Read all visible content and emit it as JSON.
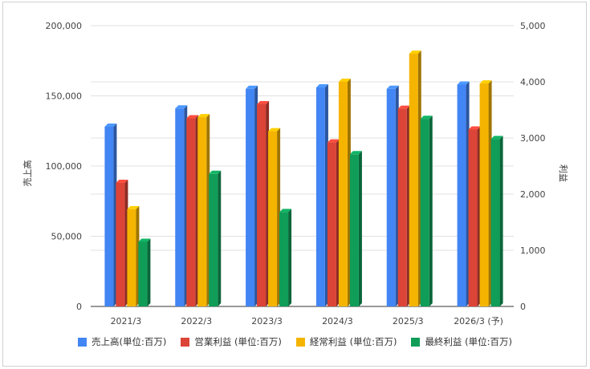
{
  "chart_data": {
    "type": "bar",
    "categories": [
      "2021/3",
      "2022/3",
      "2023/3",
      "2024/3",
      "2025/3",
      "2026/3 (予)"
    ],
    "series": [
      {
        "name": "売上高(単位:百万)",
        "axis": "left",
        "color": "#4285f4",
        "values": [
          128000,
          141000,
          155000,
          156000,
          155000,
          158000
        ]
      },
      {
        "name": "営業利益 (単位:百万)",
        "axis": "right",
        "color": "#db4437",
        "values": [
          2200,
          3350,
          3600,
          2920,
          3520,
          3150
        ]
      },
      {
        "name": "経常利益 (単位:百万)",
        "axis": "right",
        "color": "#f4b400",
        "values": [
          1730,
          3370,
          3120,
          4000,
          4500,
          3970
        ]
      },
      {
        "name": "最終利益 (単位:百万)",
        "axis": "right",
        "color": "#0f9d58",
        "values": [
          1150,
          2360,
          1680,
          2710,
          3340,
          2980
        ]
      }
    ],
    "y_left": {
      "label": "売上高",
      "ylim": [
        0,
        200000
      ],
      "ticks": [
        "0",
        "50,000",
        "100,000",
        "150,000",
        "200,000"
      ]
    },
    "y_right": {
      "label": "利益",
      "ylim": [
        0,
        5000
      ],
      "ticks": [
        "0",
        "1,000",
        "2,000",
        "3,000",
        "4,000",
        "5,000"
      ]
    },
    "grid": true,
    "legend_position": "bottom"
  }
}
